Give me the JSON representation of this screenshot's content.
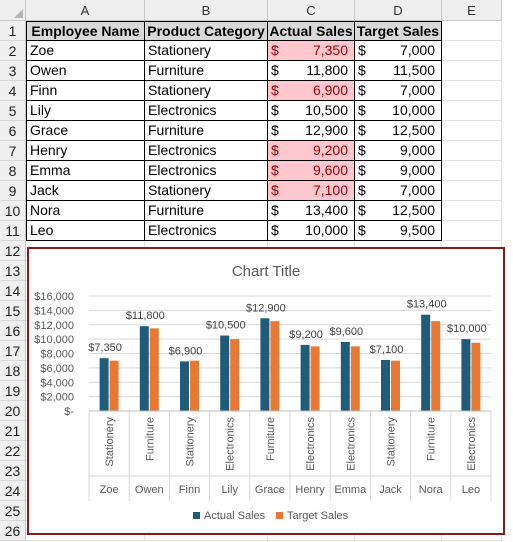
{
  "columns": [
    "A",
    "B",
    "C",
    "D",
    "E"
  ],
  "rows": [
    "1",
    "2",
    "3",
    "4",
    "5",
    "6",
    "7",
    "8",
    "9",
    "10",
    "11",
    "12",
    "13",
    "14",
    "15",
    "16",
    "17",
    "18",
    "19",
    "20",
    "21",
    "22",
    "23",
    "24",
    "25",
    "26"
  ],
  "table": {
    "headers": [
      "Employee Name",
      "Product Category",
      "Actual Sales",
      "Target Sales"
    ],
    "currency": "$",
    "records": [
      {
        "name": "Zoe",
        "category": "Stationery",
        "actual": "7,350",
        "target": "7,000",
        "highlight": true
      },
      {
        "name": "Owen",
        "category": "Furniture",
        "actual": "11,800",
        "target": "11,500",
        "highlight": false
      },
      {
        "name": "Finn",
        "category": "Stationery",
        "actual": "6,900",
        "target": "7,000",
        "highlight": true
      },
      {
        "name": "Lily",
        "category": "Electronics",
        "actual": "10,500",
        "target": "10,000",
        "highlight": false
      },
      {
        "name": "Grace",
        "category": "Furniture",
        "actual": "12,900",
        "target": "12,500",
        "highlight": false
      },
      {
        "name": "Henry",
        "category": "Electronics",
        "actual": "9,200",
        "target": "9,000",
        "highlight": true
      },
      {
        "name": "Emma",
        "category": "Electronics",
        "actual": "9,600",
        "target": "9,000",
        "highlight": true
      },
      {
        "name": "Jack",
        "category": "Stationery",
        "actual": "7,100",
        "target": "7,000",
        "highlight": true
      },
      {
        "name": "Nora",
        "category": "Furniture",
        "actual": "13,400",
        "target": "12,500",
        "highlight": false
      },
      {
        "name": "Leo",
        "category": "Electronics",
        "actual": "10,000",
        "target": "9,500",
        "highlight": false
      }
    ]
  },
  "colors": {
    "highlight_fill": "#ffc7ce",
    "highlight_text": "#9c0006",
    "actual": "#1f5c7a",
    "target": "#e97932",
    "chart_border": "#8b1a1a"
  },
  "chart_data": {
    "type": "bar",
    "title": "Chart Title",
    "categories": [
      {
        "outer": "Zoe",
        "inner": "Stationery"
      },
      {
        "outer": "Owen",
        "inner": "Furniture"
      },
      {
        "outer": "Finn",
        "inner": "Stationery"
      },
      {
        "outer": "Lily",
        "inner": "Electronics"
      },
      {
        "outer": "Grace",
        "inner": "Furniture"
      },
      {
        "outer": "Henry",
        "inner": "Electronics"
      },
      {
        "outer": "Emma",
        "inner": "Electronics"
      },
      {
        "outer": "Jack",
        "inner": "Stationery"
      },
      {
        "outer": "Nora",
        "inner": "Furniture"
      },
      {
        "outer": "Leo",
        "inner": "Electronics"
      }
    ],
    "series": [
      {
        "name": "Actual Sales",
        "values": [
          7350,
          11800,
          6900,
          10500,
          12900,
          9200,
          9600,
          7100,
          13400,
          10000
        ]
      },
      {
        "name": "Target Sales",
        "values": [
          7000,
          11500,
          7000,
          10000,
          12500,
          9000,
          9000,
          7000,
          12500,
          9500
        ]
      }
    ],
    "data_labels": [
      "$7,350",
      "$11,800",
      "$6,900",
      "$10,500",
      "$12,900",
      "$9,200",
      "$9,600",
      "$7,100",
      "$13,400",
      "$10,000"
    ],
    "yticks": [
      0,
      2000,
      4000,
      6000,
      8000,
      10000,
      12000,
      14000,
      16000
    ],
    "ytick_labels": [
      "$-",
      "$2,000",
      "$4,000",
      "$6,000",
      "$8,000",
      "$10,000",
      "$12,000",
      "$14,000",
      "$16,000"
    ],
    "ylim": [
      0,
      16000
    ],
    "grid": true,
    "legend": "bottom"
  }
}
